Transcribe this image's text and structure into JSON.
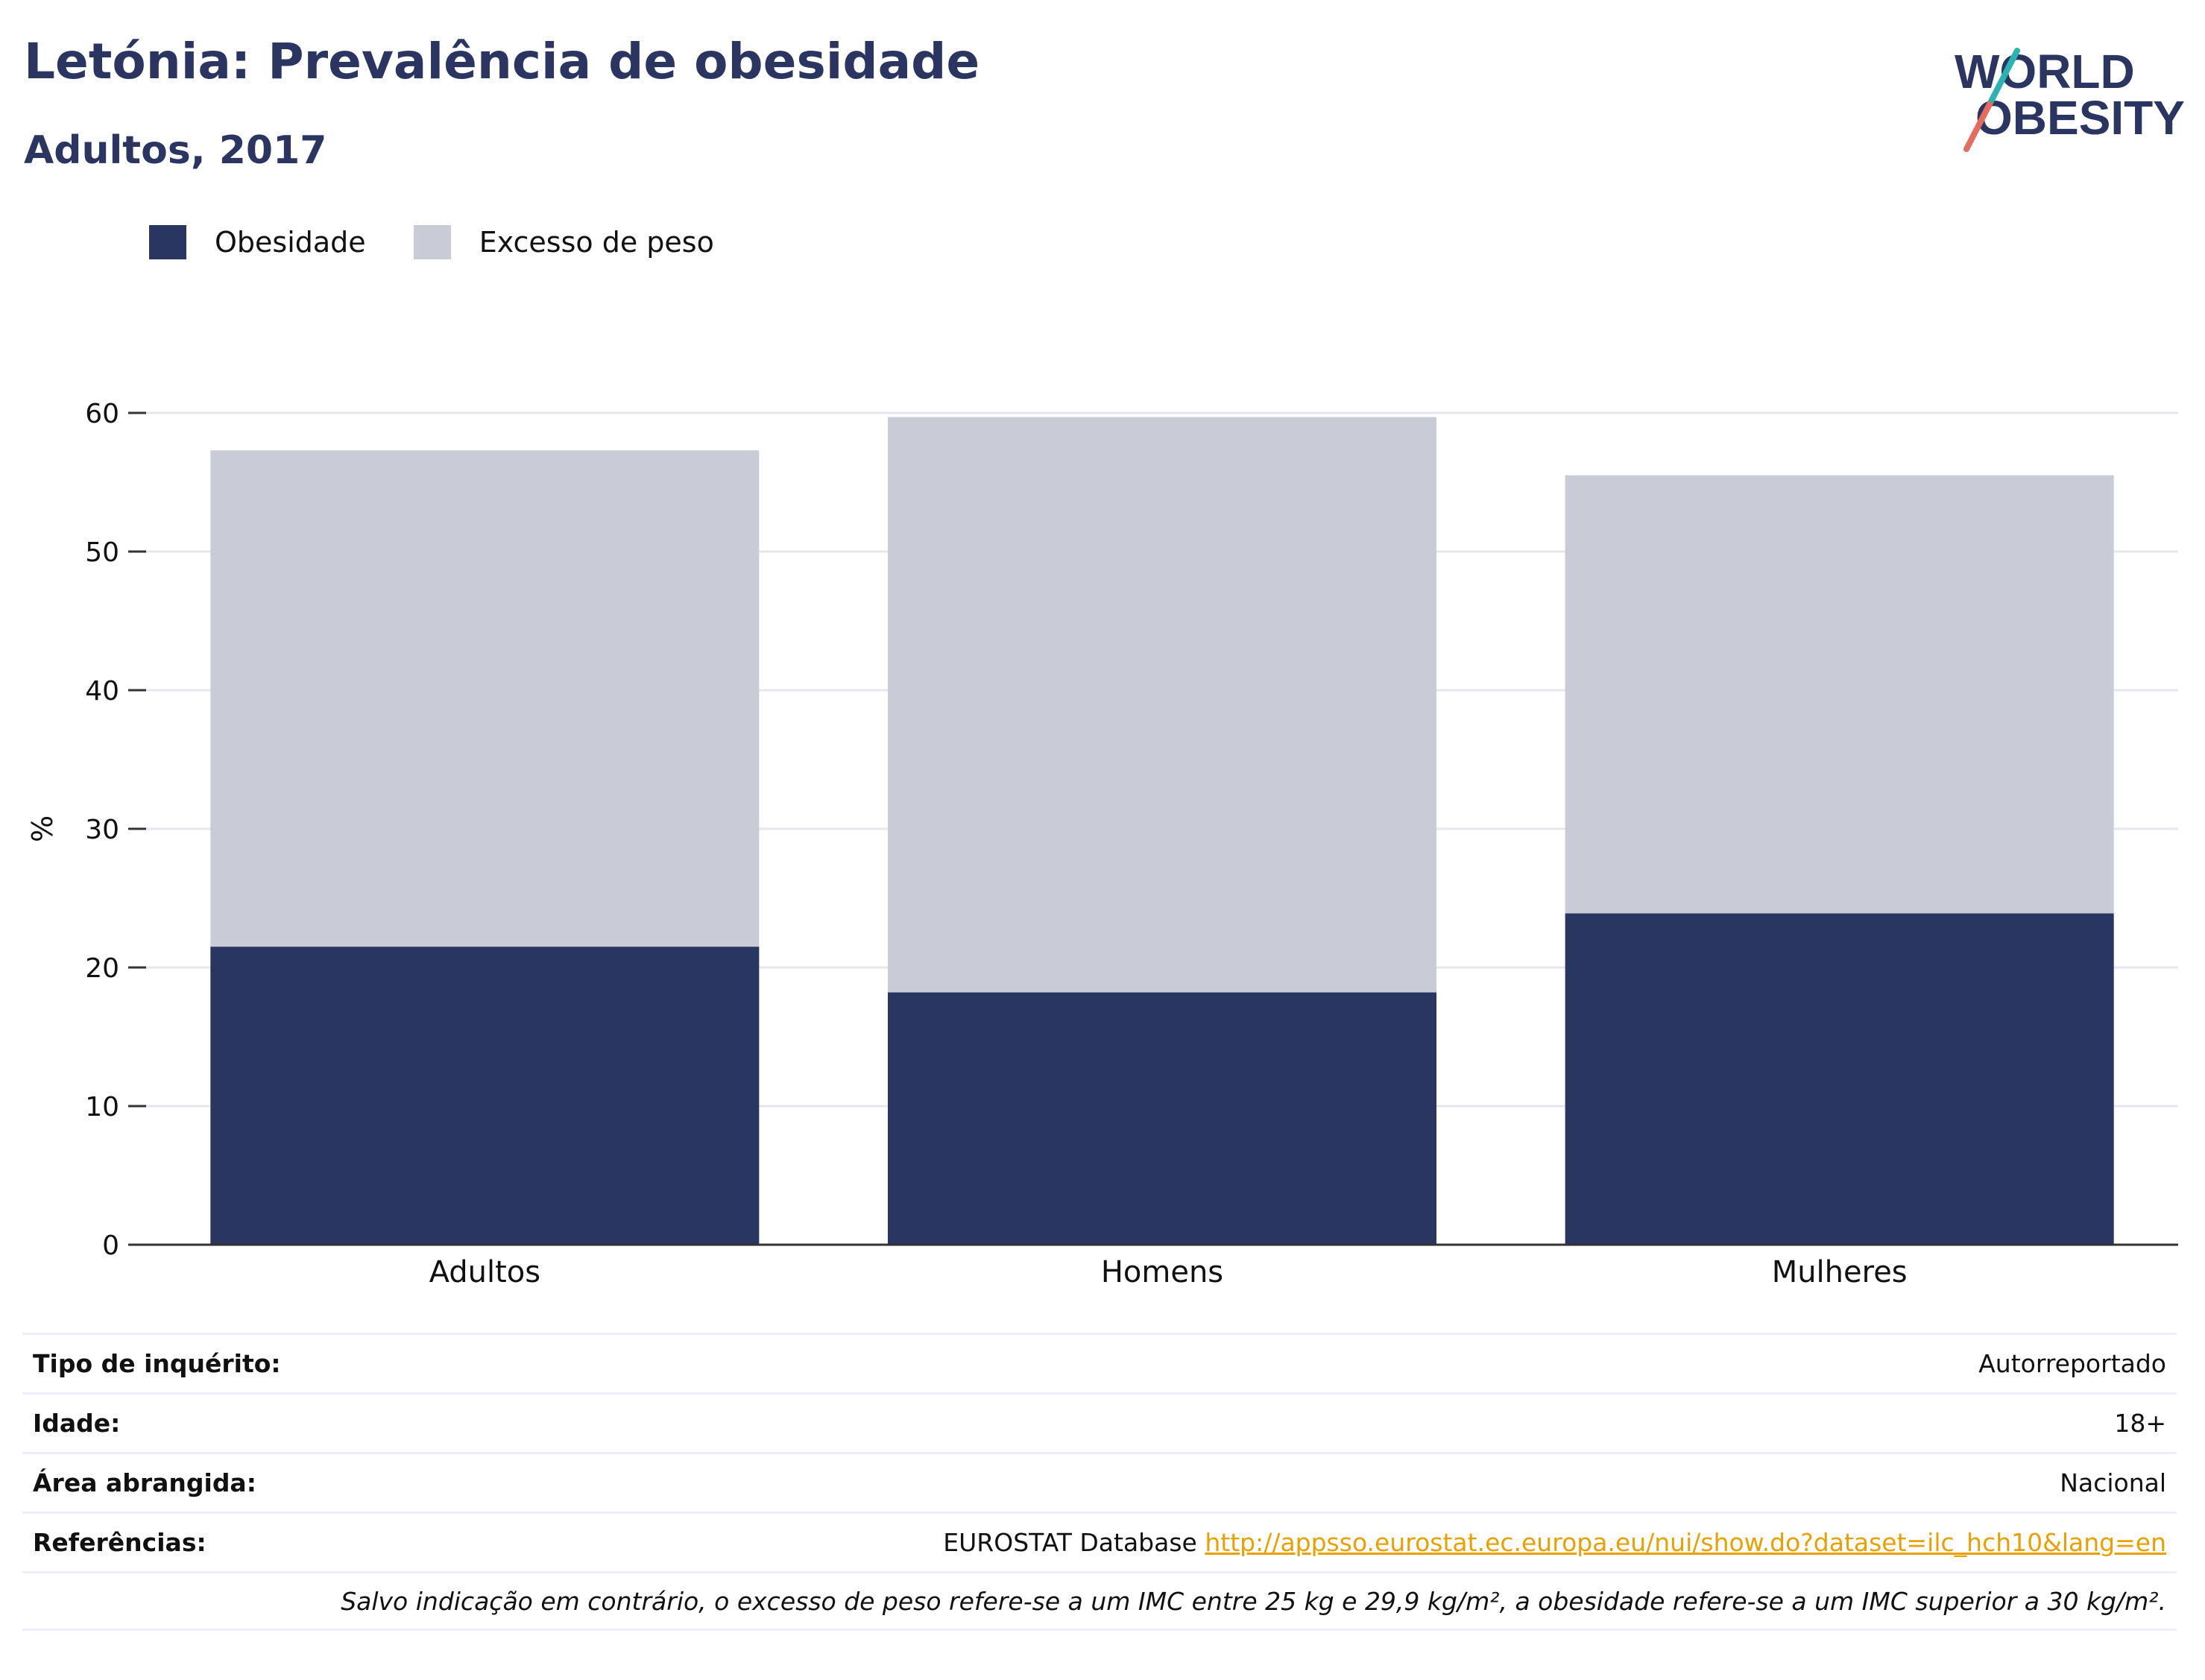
{
  "header": {
    "title": "Letónia: Prevalência de obesidade",
    "subtitle": "Adultos, 2017"
  },
  "logo": {
    "line1": "WORLD",
    "line2": "OBESITY"
  },
  "colors": {
    "obesity": "#2a3662",
    "overweight": "#c9cbd7",
    "title": "#2a3561",
    "link": "#e8a100"
  },
  "chart_data": {
    "type": "bar",
    "stacked": true,
    "categories": [
      "Adultos",
      "Homens",
      "Mulheres"
    ],
    "series": [
      {
        "name": "Obesidade",
        "values": [
          21.5,
          18.2,
          23.9
        ]
      },
      {
        "name": "Excesso de peso",
        "values": [
          35.8,
          41.5,
          31.6
        ]
      }
    ],
    "ylabel": "%",
    "xlabel": "",
    "ylim": [
      0,
      60
    ],
    "yticks": [
      0,
      10,
      20,
      30,
      40,
      50,
      60
    ],
    "grid": true,
    "legend_position": "top-left"
  },
  "info": {
    "rows": [
      {
        "label": "Tipo de inquérito:",
        "value": "Autorreportado"
      },
      {
        "label": "Idade:",
        "value": "18+"
      },
      {
        "label": "Área abrangida:",
        "value": "Nacional"
      }
    ],
    "references": {
      "label": "Referências:",
      "source": "EUROSTAT Database ",
      "link": "http://appsso.eurostat.ec.europa.eu/nui/show.do?dataset=ilc_hch10&lang=en"
    },
    "note": "Salvo indicação em contrário, o excesso de peso refere-se a um IMC entre 25 kg e 29,9 kg/m², a obesidade refere-se a um IMC superior a 30 kg/m²."
  }
}
